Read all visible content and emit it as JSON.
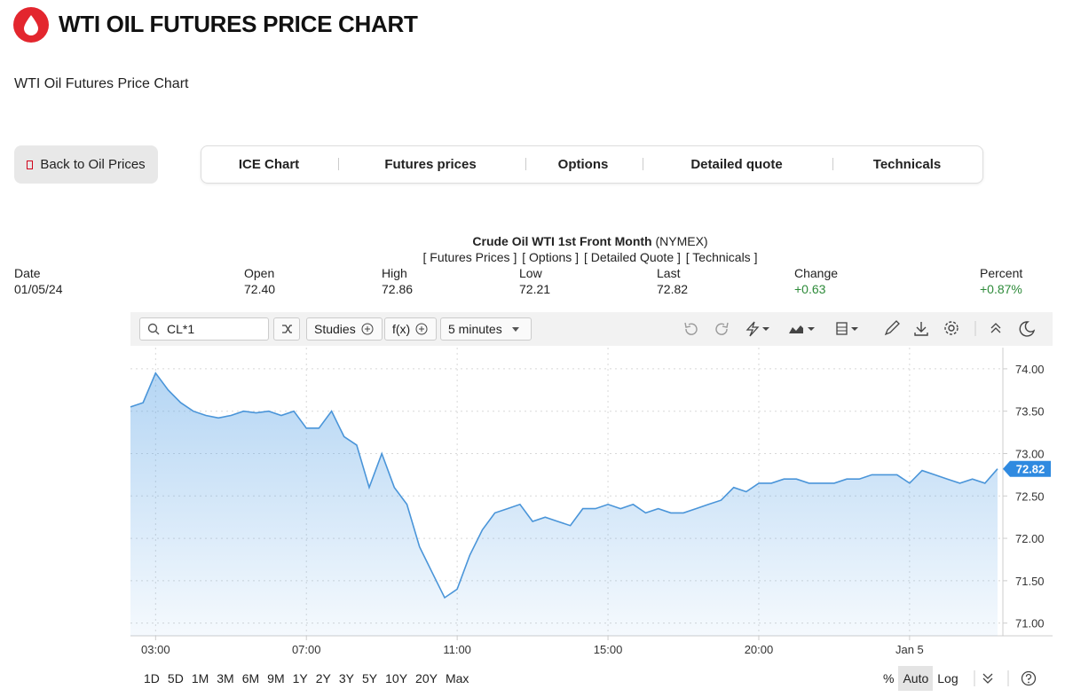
{
  "header": {
    "title": "WTI OIL FUTURES PRICE CHART",
    "subtitle": "WTI Oil Futures Price Chart"
  },
  "nav": {
    "back": "Back to Oil Prices",
    "tabs": [
      "ICE Chart",
      "Futures prices",
      "Options",
      "Detailed quote",
      "Technicals"
    ]
  },
  "quote": {
    "name": "Crude Oil WTI 1st Front Month",
    "exchange": "(NYMEX)",
    "links": [
      "[ Futures Prices ]",
      "[ Options ]",
      "[ Detailed Quote ]",
      "[ Technicals ]"
    ],
    "columns": [
      {
        "label": "Date",
        "value": "01/05/24"
      },
      {
        "label": "Open",
        "value": "72.40"
      },
      {
        "label": "High",
        "value": "72.86"
      },
      {
        "label": "Low",
        "value": "72.21"
      },
      {
        "label": "Last",
        "value": "72.82"
      },
      {
        "label": "Change",
        "value": "+0.63"
      },
      {
        "label": "Percent",
        "value": "+0.87%"
      }
    ]
  },
  "toolbar": {
    "symbol": "CL*1",
    "studies": "Studies",
    "function": "f(x)",
    "interval": "5 minutes"
  },
  "ranges": [
    "1D",
    "5D",
    "1M",
    "3M",
    "6M",
    "9M",
    "1Y",
    "2Y",
    "3Y",
    "5Y",
    "10Y",
    "20Y",
    "Max"
  ],
  "scale_options": [
    "%",
    "Auto",
    "Log"
  ],
  "chart_data": {
    "type": "line",
    "color": "#4a95d9",
    "grid": true,
    "values": [
      73.55,
      73.6,
      73.95,
      73.75,
      73.6,
      73.5,
      73.45,
      73.42,
      73.45,
      73.5,
      73.48,
      73.5,
      73.45,
      73.5,
      73.3,
      73.3,
      73.5,
      73.2,
      73.1,
      72.6,
      73.0,
      72.6,
      72.4,
      71.9,
      71.6,
      71.3,
      71.4,
      71.8,
      72.1,
      72.3,
      72.35,
      72.4,
      72.2,
      72.25,
      72.2,
      72.15,
      72.35,
      72.35,
      72.4,
      72.35,
      72.4,
      72.3,
      72.35,
      72.3,
      72.3,
      72.35,
      72.4,
      72.45,
      72.6,
      72.55,
      72.65,
      72.65,
      72.7,
      72.7,
      72.65,
      72.65,
      72.65,
      72.7,
      72.7,
      72.75,
      72.75,
      72.75,
      72.65,
      72.8,
      72.75,
      72.7,
      72.65,
      72.7,
      72.65,
      72.82
    ],
    "xlim": [
      0,
      69
    ],
    "xticks": [
      {
        "value": 2,
        "label": "03:00"
      },
      {
        "value": 14,
        "label": "07:00"
      },
      {
        "value": 26,
        "label": "11:00"
      },
      {
        "value": 38,
        "label": "15:00"
      },
      {
        "value": 50,
        "label": "20:00"
      },
      {
        "value": 62,
        "label": "Jan 5"
      }
    ],
    "ylim": [
      70.85,
      74.25
    ],
    "yticks": [
      {
        "value": 71,
        "label": "71.00"
      },
      {
        "value": 71.5,
        "label": "71.50"
      },
      {
        "value": 72,
        "label": "72.00"
      },
      {
        "value": 72.5,
        "label": "72.50"
      },
      {
        "value": 73,
        "label": "73.00"
      },
      {
        "value": 73.5,
        "label": "73.50"
      },
      {
        "value": 74,
        "label": "74.00"
      }
    ]
  }
}
